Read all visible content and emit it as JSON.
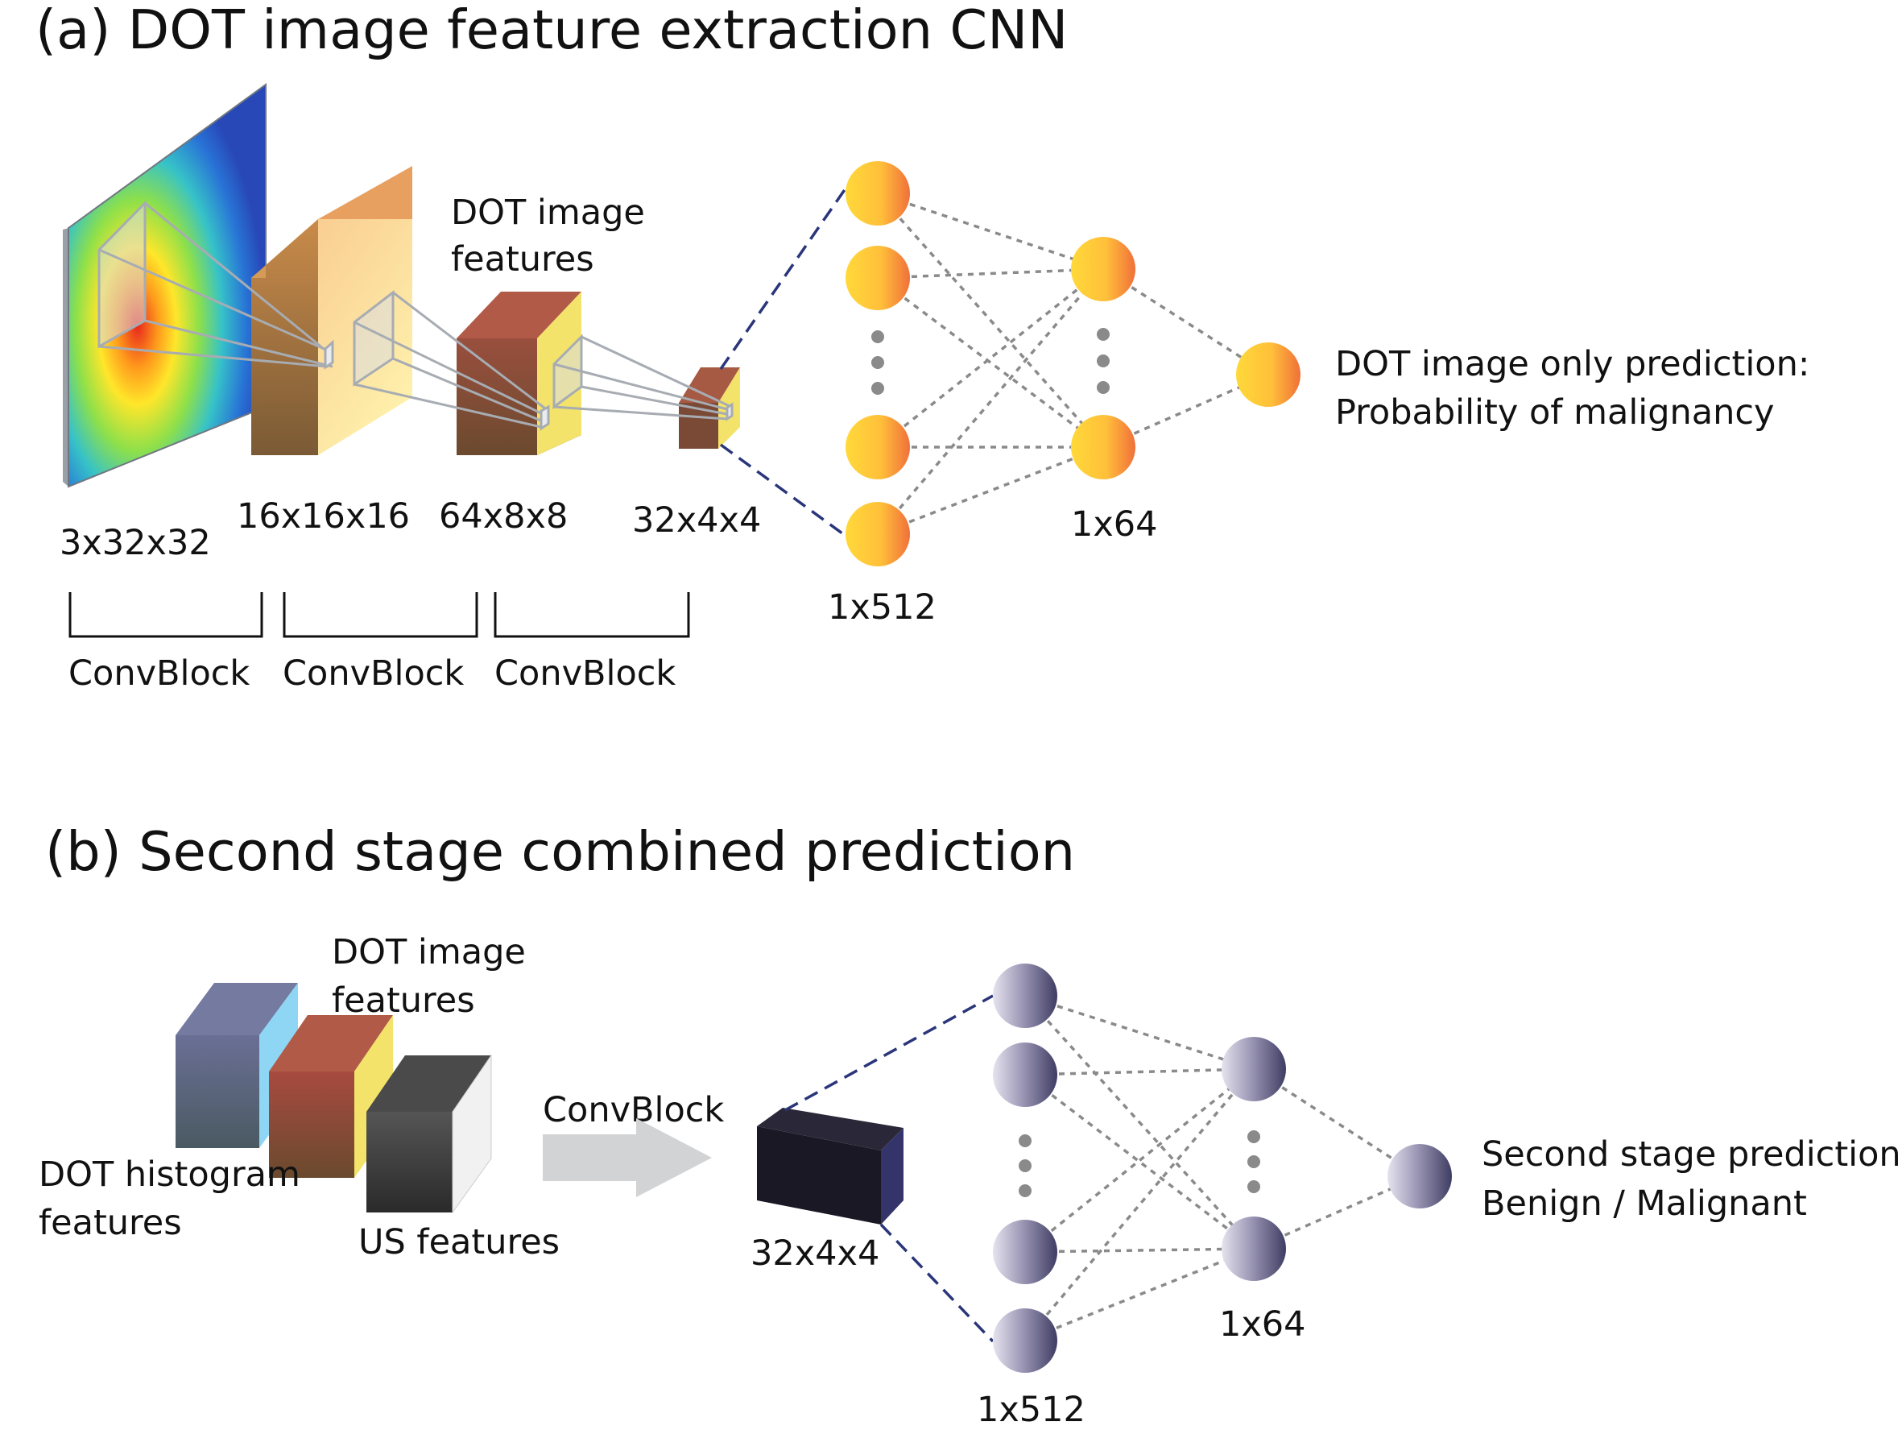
{
  "panel_a": {
    "title": "(a) DOT image feature extraction CNN",
    "feature_label_line1": "DOT image",
    "feature_label_line2": "features",
    "dims": [
      "3x32x32",
      "16x16x16",
      "64x8x8",
      "32x4x4"
    ],
    "convblocks": [
      "ConvBlock",
      "ConvBlock",
      "ConvBlock"
    ],
    "layer1_label": "1x512",
    "layer2_label": "1x64",
    "output_line1": "DOT image only prediction:",
    "output_line2": "Probability of malignancy",
    "node_colors": [
      "#ffd93a",
      "#f0703a"
    ]
  },
  "panel_b": {
    "title": "(b) Second stage combined prediction",
    "dot_image_line1": "DOT image",
    "dot_image_line2": "features",
    "histogram_line1": "DOT histogram",
    "histogram_line2": "features",
    "us_label": "US features",
    "arrow_label": "ConvBlock",
    "block_label": "32x4x4",
    "layer1_label": "1x512",
    "layer2_label": "1x64",
    "output_line1": "Second stage prediction:",
    "output_line2": "Benign / Malignant",
    "node_colors": [
      "#e6e3ef",
      "#3f3d63"
    ]
  }
}
